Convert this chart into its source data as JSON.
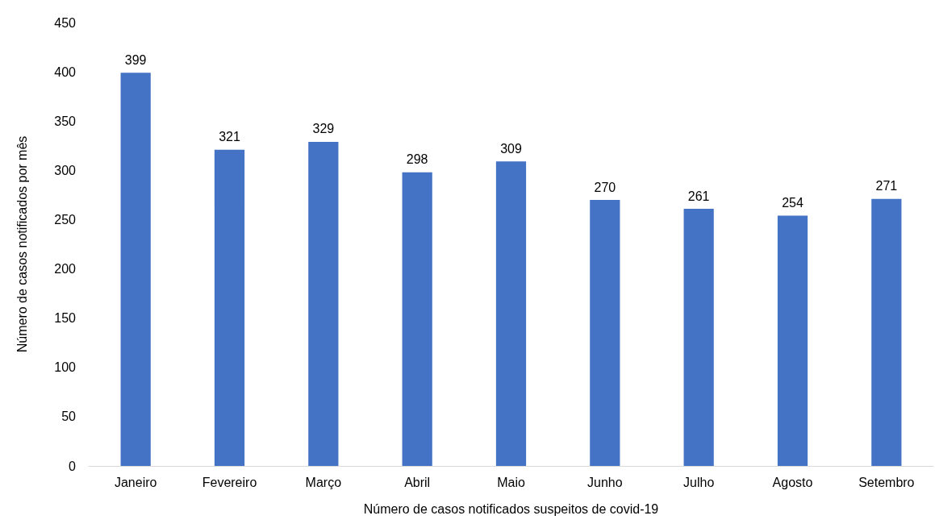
{
  "chart_data": {
    "type": "bar",
    "xlabel": "Número de casos notificados suspeitos de covid-19",
    "ylabel": "Número de casos notificados por mês",
    "categories": [
      "Janeiro",
      "Fevereiro",
      "Março",
      "Abril",
      "Maio",
      "Junho",
      "Julho",
      "Agosto",
      "Setembro"
    ],
    "values": [
      399,
      321,
      329,
      298,
      309,
      270,
      261,
      254,
      271
    ],
    "color": "#4472c4",
    "ylim": [
      0,
      450
    ],
    "yticks": [
      0,
      50,
      100,
      150,
      200,
      250,
      300,
      350,
      400,
      450
    ],
    "grid": false,
    "data_labels": true
  }
}
